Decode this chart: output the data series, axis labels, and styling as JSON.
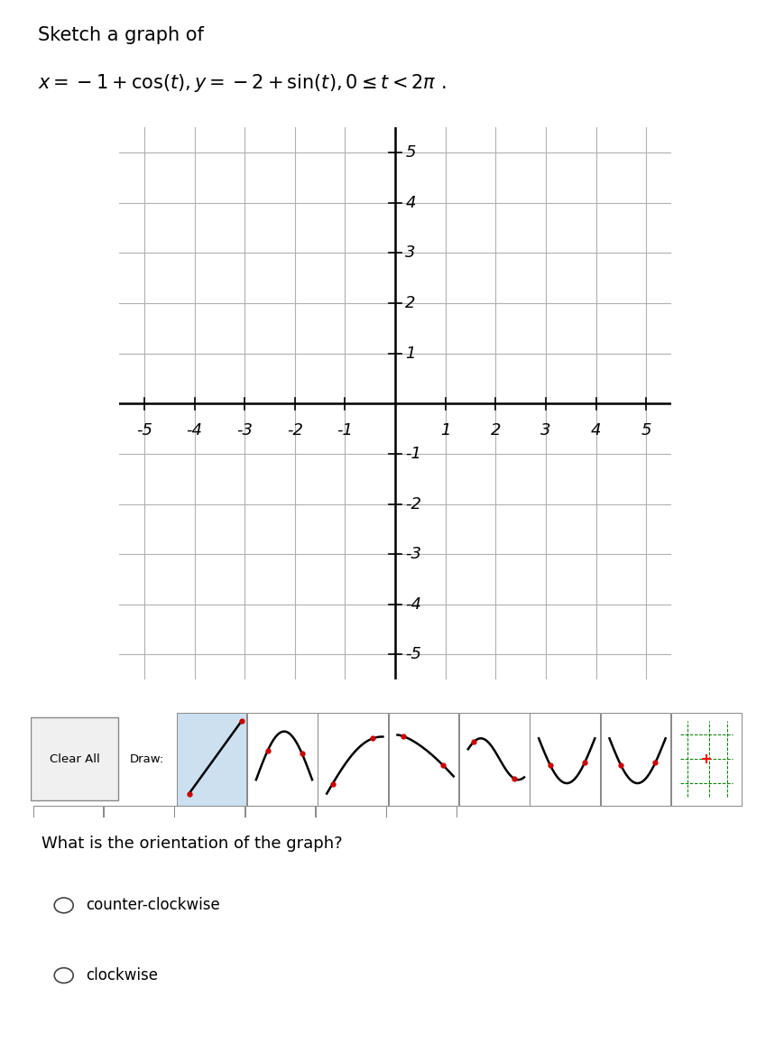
{
  "title_line1": "Sketch a graph of",
  "title_line2_math": "$x = -1 + \\cos(t), y = -2 + \\sin(t), 0 \\leq t < 2\\pi\\ .$",
  "grid_range": [
    -5,
    5
  ],
  "grid_ticks": [
    -5,
    -4,
    -3,
    -2,
    -1,
    0,
    1,
    2,
    3,
    4,
    5
  ],
  "x_tick_labels": [
    "-5",
    "-4",
    "-3",
    "-2",
    "-1",
    "",
    "1",
    "2",
    "3",
    "4",
    "5"
  ],
  "y_tick_labels_pos": [
    5,
    4,
    3,
    2,
    1,
    -1,
    -2,
    -3,
    -4,
    -5
  ],
  "y_tick_labels": [
    "5",
    "4",
    "3",
    "2",
    "1",
    "-1",
    "-2",
    "-3",
    "-4",
    "-5"
  ],
  "axis_color": "#000000",
  "grid_color": "#b0b0b0",
  "background_color": "#ffffff",
  "title_fontsize": 15,
  "tick_fontsize": 13,
  "question_text": "What is the orientation of the graph?",
  "option1": "counter-clockwise",
  "option2": "clockwise",
  "toolbar_label": "Clear All",
  "draw_label": "Draw:",
  "toolbar_bg": "#cce0f0",
  "toolbar_border": "#999999"
}
